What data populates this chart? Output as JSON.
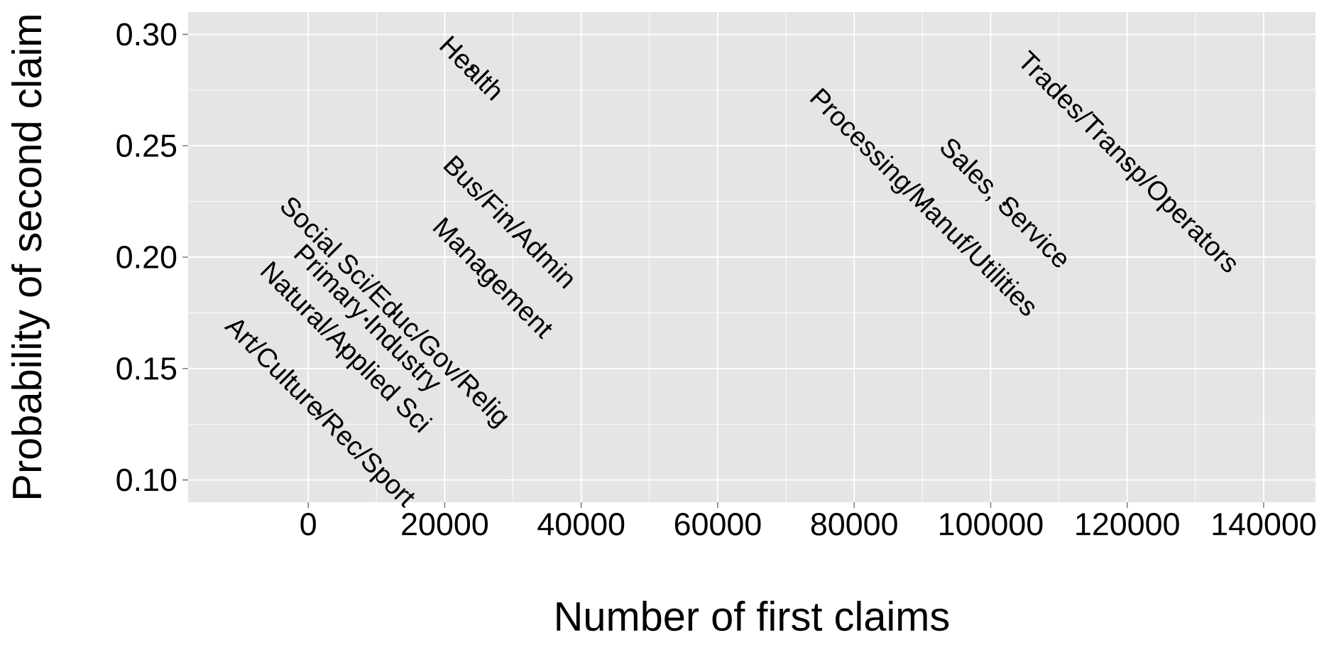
{
  "chart_data": {
    "type": "scatter",
    "xlabel": "Number of first claims",
    "ylabel": "Probability of second claim",
    "xlim": [
      -17600,
      147600
    ],
    "ylim": [
      0.09,
      0.31
    ],
    "xticks": [
      0,
      20000,
      40000,
      60000,
      80000,
      100000,
      120000,
      140000
    ],
    "yticks": [
      {
        "value": 0.1,
        "label": "0.10"
      },
      {
        "value": 0.15,
        "label": "0.15"
      },
      {
        "value": 0.2,
        "label": "0.20"
      },
      {
        "value": 0.25,
        "label": "0.25"
      },
      {
        "value": 0.3,
        "label": "0.30"
      }
    ],
    "grid": true,
    "color": "#000000",
    "marker": "circle",
    "x": [
      24000,
      120000,
      90000,
      102000,
      29600,
      26800,
      12500,
      8500,
      5300,
      1600
    ],
    "values": [
      0.285,
      0.242,
      0.224,
      0.224,
      0.216,
      0.19,
      0.175,
      0.172,
      0.159,
      0.13
    ],
    "value_labels": [
      "Health",
      "Trades/Transp/Operators",
      "Processing/Manuf/Utilities",
      "Sales, Service",
      "Bus/Fin/Admin",
      "Management",
      "Social Sci/Educ/Gov/Relig",
      "Primary Industry",
      "Natural/Applied Sci",
      "Art/Culture/Rec/Sport"
    ]
  }
}
